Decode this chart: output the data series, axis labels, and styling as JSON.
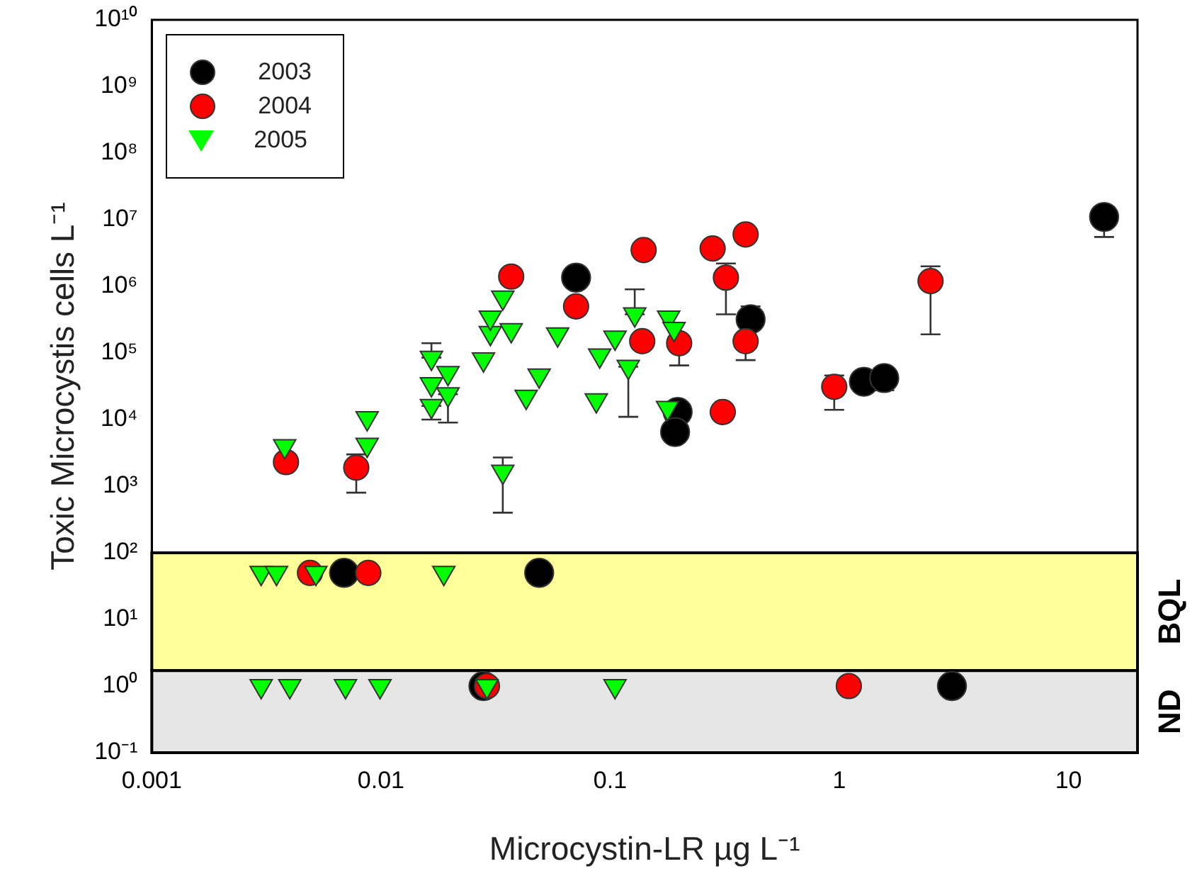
{
  "chart_data": {
    "type": "scatter",
    "xlabel": "Microcystin-LR µg L⁻¹",
    "ylabel": "Toxic Microcystis cells L⁻¹",
    "log": "xy",
    "grid": false,
    "legend": "top left",
    "xlim": [
      0.001,
      20
    ],
    "xticks": [
      0.001,
      0.01,
      0.1,
      1,
      10
    ],
    "ylim": [
      0.1,
      10000000000
    ],
    "yticks": [
      {
        "value": 0.1,
        "label": "10⁻¹"
      },
      {
        "value": 1,
        "label": "10⁰"
      },
      {
        "value": 10,
        "label": "10¹"
      },
      {
        "value": 100,
        "label": "10²"
      },
      {
        "value": 1000,
        "label": "10³"
      },
      {
        "value": 10000,
        "label": "10⁴"
      },
      {
        "value": 100000,
        "label": "10⁵"
      },
      {
        "value": 1000000,
        "label": "10⁶"
      },
      {
        "value": 10000000,
        "label": "10⁷"
      },
      {
        "value": 100000000,
        "label": "10⁸"
      },
      {
        "value": 1000000000,
        "label": "10⁹"
      },
      {
        "value": 10000000000,
        "label": "10¹⁰"
      }
    ],
    "bands": [
      {
        "axis": "y",
        "from": 1.7,
        "to": 100,
        "label": "BQL",
        "color": "#ffff99"
      },
      {
        "axis": "y",
        "from": 0.1,
        "to": 1.7,
        "label": "ND",
        "color": "#e6e6e6"
      }
    ],
    "series": [
      {
        "name": "2003",
        "color": "#000000",
        "marker": "circle",
        "x": [
          0.071,
          0.197,
          0.192,
          0.41,
          1.28,
          1.57,
          14.3,
          0.0069,
          0.049,
          0.028,
          3.1
        ],
        "values": [
          1350000,
          13000,
          6500,
          320000,
          37000,
          42000,
          11000000,
          50,
          50,
          1,
          1
        ],
        "errors": [
          null,
          null,
          null,
          [
            320000,
            500000
          ],
          null,
          [
            27500,
            42000
          ],
          [
            5500000,
            11000000
          ],
          null,
          null,
          null,
          null
        ]
      },
      {
        "name": "2004",
        "color": "#ff0000",
        "marker": "circle",
        "x": [
          0.00385,
          0.0078,
          0.037,
          0.071,
          0.14,
          0.138,
          0.2,
          0.28,
          0.39,
          0.32,
          0.39,
          0.31,
          0.95,
          2.5,
          0.0049,
          0.0088,
          0.029,
          1.1
        ],
        "values": [
          2300,
          1900,
          1400000,
          500000,
          3500000,
          150000,
          140000,
          3700000,
          6000000,
          1350000,
          150000,
          13000,
          31000,
          1200000,
          50,
          50,
          1,
          1
        ],
        "errors": [
          null,
          [
            800,
            3000
          ],
          null,
          null,
          null,
          null,
          [
            65000,
            140000
          ],
          null,
          null,
          [
            380000,
            2200000
          ],
          [
            78000,
            150000
          ],
          null,
          [
            14000,
            46000
          ],
          [
            190000,
            2000000
          ],
          null,
          null,
          null,
          null
        ]
      },
      {
        "name": "2005",
        "color": "#00ff00",
        "marker": "triangle",
        "x": [
          0.0038,
          0.0087,
          0.0087,
          0.0166,
          0.0166,
          0.0166,
          0.0196,
          0.0196,
          0.028,
          0.03,
          0.03,
          0.034,
          0.037,
          0.034,
          0.043,
          0.049,
          0.059,
          0.09,
          0.087,
          0.105,
          0.12,
          0.128,
          0.18,
          0.19,
          0.178,
          0.003,
          0.0035,
          0.0052,
          0.0188,
          0.003,
          0.004,
          0.007,
          0.0099,
          0.029,
          0.105
        ],
        "values": [
          4000,
          10500,
          4200,
          85000,
          34000,
          16000,
          50000,
          24000,
          80000,
          200000,
          340000,
          680000,
          220000,
          1650,
          22000,
          46000,
          190000,
          92000,
          19500,
          170000,
          62000,
          380000,
          340000,
          230000,
          15000,
          50,
          50,
          50,
          50,
          1,
          1,
          1,
          1,
          1,
          1
        ],
        "errors": [
          null,
          null,
          null,
          [
            85000,
            140000
          ],
          null,
          [
            10000,
            16000
          ],
          null,
          [
            9000,
            24000
          ],
          null,
          null,
          null,
          null,
          null,
          [
            400,
            2700
          ],
          null,
          null,
          null,
          null,
          null,
          null,
          [
            11000,
            62000
          ],
          [
            380000,
            900000
          ],
          null,
          null,
          null,
          null,
          null,
          null,
          null,
          null,
          null,
          null,
          null,
          null,
          null
        ]
      }
    ]
  }
}
